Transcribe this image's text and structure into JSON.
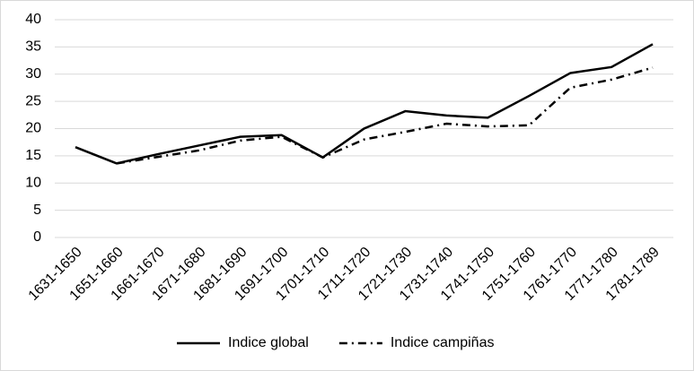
{
  "chart_data": {
    "type": "line",
    "categories": [
      "1631-1650",
      "1651-1660",
      "1661-1670",
      "1671-1680",
      "1681-1690",
      "1691-1700",
      "1701-1710",
      "1711-1720",
      "1721-1730",
      "1731-1740",
      "1741-1750",
      "1751-1760",
      "1761-1770",
      "1771-1780",
      "1781-1789"
    ],
    "series": [
      {
        "name": "Indice global",
        "color": "#000000",
        "dash": "solid",
        "values": [
          16.6,
          13.6,
          15.3,
          16.9,
          18.5,
          18.8,
          14.7,
          20.0,
          23.2,
          22.4,
          22.0,
          26.0,
          30.2,
          31.3,
          35.5
        ]
      },
      {
        "name": "Indice campiñas",
        "color": "#000000",
        "dash": "dashdot",
        "values": [
          null,
          13.6,
          14.8,
          16.0,
          17.8,
          18.5,
          14.7,
          18.0,
          19.4,
          20.9,
          20.4,
          20.6,
          27.5,
          29.0,
          31.2
        ]
      }
    ],
    "ylim": [
      0,
      40
    ],
    "yticks": [
      0,
      5,
      10,
      15,
      20,
      25,
      30,
      35,
      40
    ],
    "grid": true,
    "legend": "bottom"
  }
}
